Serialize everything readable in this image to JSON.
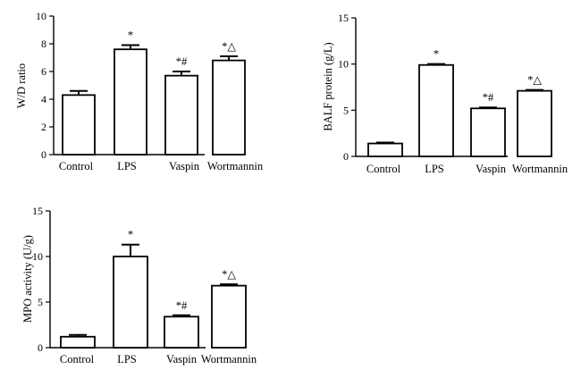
{
  "chart_data": [
    {
      "type": "bar",
      "categories": [
        "Control",
        "LPS",
        "Vaspin",
        "Wortmannin"
      ],
      "values": [
        4.3,
        7.6,
        5.7,
        6.8
      ],
      "errors": [
        0.3,
        0.3,
        0.3,
        0.3
      ],
      "annotations": [
        "",
        "*",
        "*#",
        "*△"
      ],
      "ylabel": "W/D ratio",
      "ylim": [
        0,
        10
      ],
      "yticks": [
        0,
        2,
        4,
        6,
        8,
        10
      ]
    },
    {
      "type": "bar",
      "categories": [
        "Control",
        "LPS",
        "Vaspin",
        "Wortmannin"
      ],
      "values": [
        1.4,
        9.9,
        5.2,
        7.1
      ],
      "errors": [
        0.1,
        0.1,
        0.1,
        0.1
      ],
      "annotations": [
        "",
        "*",
        "*#",
        "*△"
      ],
      "ylabel": "BALF protein (g/L)",
      "ylim": [
        0,
        15
      ],
      "yticks": [
        0,
        5,
        10,
        15
      ]
    },
    {
      "type": "bar",
      "categories": [
        "Control",
        "LPS",
        "Vaspin",
        "Wortmannin"
      ],
      "values": [
        1.2,
        10.0,
        3.4,
        6.8
      ],
      "errors": [
        0.2,
        1.3,
        0.15,
        0.15
      ],
      "annotations": [
        "",
        "*",
        "*#",
        "*△"
      ],
      "ylabel": "MPO activity (U/g)",
      "ylim": [
        0,
        15
      ],
      "yticks": [
        0,
        5,
        10,
        15
      ]
    }
  ]
}
